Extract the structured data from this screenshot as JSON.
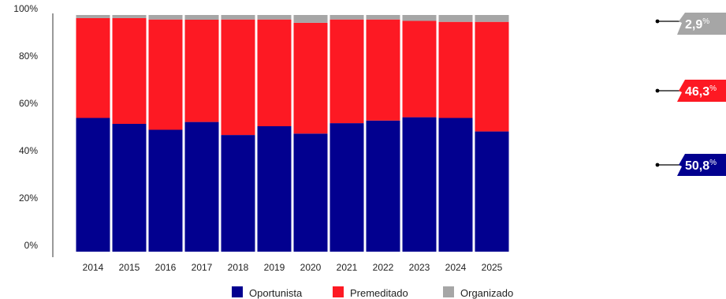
{
  "chart_data": {
    "type": "bar",
    "stacked": true,
    "normalized": true,
    "categories": [
      "2014",
      "2015",
      "2016",
      "2017",
      "2018",
      "2019",
      "2020",
      "2021",
      "2022",
      "2023",
      "2024",
      "2025"
    ],
    "series": [
      {
        "name": "Oportunista",
        "color": "#02008f",
        "values": [
          56.5,
          54.0,
          51.5,
          54.8,
          49.3,
          53.0,
          49.9,
          54.3,
          55.4,
          56.8,
          56.5,
          50.8
        ]
      },
      {
        "name": "Premeditado",
        "color": "#fd1923",
        "values": [
          42.2,
          44.7,
          46.6,
          43.2,
          48.8,
          45.1,
          46.8,
          43.8,
          42.7,
          40.7,
          40.6,
          46.3
        ]
      },
      {
        "name": "Organizado",
        "color": "#a6a6a6",
        "values": [
          1.3,
          1.3,
          1.9,
          2.0,
          1.9,
          1.9,
          3.3,
          1.9,
          1.9,
          2.5,
          2.9,
          2.9
        ]
      }
    ],
    "ylim": [
      0,
      100
    ],
    "y_ticks": [
      "0%",
      "20%",
      "40%",
      "60%",
      "80%",
      "100%"
    ],
    "legend_position": "bottom",
    "grid": false,
    "callouts": [
      {
        "series": "Organizado",
        "value": "2,9",
        "unit": "%",
        "color": "#a6a6a6"
      },
      {
        "series": "Premeditado",
        "value": "46,3",
        "unit": "%",
        "color": "#fd1923"
      },
      {
        "series": "Oportunista",
        "value": "50,8",
        "unit": "%",
        "color": "#02008f"
      }
    ]
  }
}
